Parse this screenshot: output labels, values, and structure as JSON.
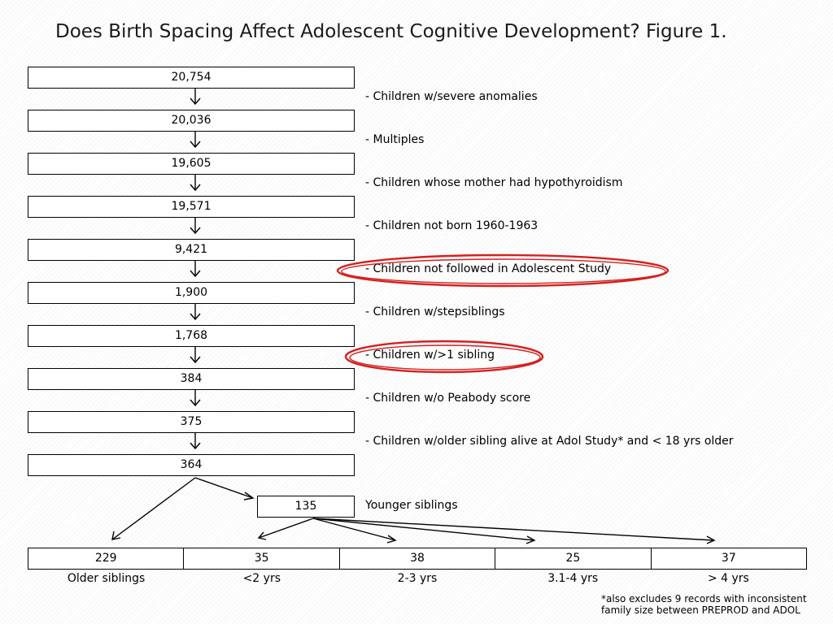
{
  "title": "Does Birth Spacing Affect Adolescent Cognitive Development?  Figure 1.",
  "flow": {
    "counts": [
      "20,754",
      "20,036",
      "19,605",
      "19,571",
      "9,421",
      "1,900",
      "1,768",
      "384",
      "375",
      "364"
    ],
    "exclusions": [
      "- Children w/severe anomalies",
      "- Multiples",
      "- Children whose mother had hypothyroidism",
      "- Children not born 1960-1963",
      "- Children not followed in Adolescent Study",
      "- Children w/stepsiblings",
      "- Children w/>1 sibling",
      "- Children w/o Peabody score",
      "- Children w/older sibling alive at Adol Study* and < 18 yrs older"
    ],
    "highlighted_exclusions": [
      4,
      6
    ]
  },
  "split": {
    "younger_count": "135",
    "younger_label": "Younger siblings"
  },
  "groups": {
    "counts": [
      "229",
      "35",
      "38",
      "25",
      "37"
    ],
    "labels": [
      "Older siblings",
      "<2 yrs",
      "2-3 yrs",
      "3.1-4 yrs",
      "> 4 yrs"
    ]
  },
  "footnote": {
    "line1": "*also excludes 9 records with inconsistent",
    "line2": "family size between PREPROD and ADOL"
  },
  "colors": {
    "highlight": "#d42020"
  }
}
